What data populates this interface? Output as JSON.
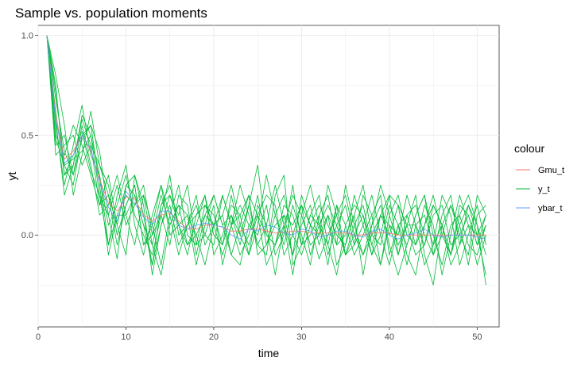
{
  "chart_data": {
    "type": "line",
    "title": "Sample vs. population moments",
    "xlabel": "time",
    "ylabel": "yt",
    "xlim": [
      0,
      52.5
    ],
    "ylim": [
      -0.46,
      1.05
    ],
    "xticks": [
      0,
      10,
      20,
      30,
      40,
      50
    ],
    "yticks": [
      0.0,
      0.5,
      1.0
    ],
    "xtick_labels": [
      "0",
      "10",
      "20",
      "30",
      "40",
      "50"
    ],
    "ytick_labels": [
      "0.0",
      "0.5",
      "1.0"
    ],
    "grid": true,
    "legend": {
      "title": "colour",
      "position": "right",
      "entries": [
        {
          "name": "Gmu_t",
          "color": "#F8766D"
        },
        {
          "name": "y_t",
          "color": "#00BA38"
        },
        {
          "name": "ybar_t",
          "color": "#619CFF"
        }
      ]
    },
    "x": [
      1,
      2,
      3,
      4,
      5,
      6,
      7,
      8,
      9,
      10,
      11,
      12,
      13,
      14,
      15,
      16,
      17,
      18,
      19,
      20,
      21,
      22,
      23,
      24,
      25,
      26,
      27,
      28,
      29,
      30,
      31,
      32,
      33,
      34,
      35,
      36,
      37,
      38,
      39,
      40,
      41,
      42,
      43,
      44,
      45,
      46,
      47,
      48,
      49,
      50,
      51
    ],
    "series": [
      {
        "name": "Gmu_t",
        "color": "#F8766D",
        "values": [
          1.0,
          0.6,
          0.38,
          0.42,
          0.5,
          0.42,
          0.28,
          0.16,
          0.12,
          0.19,
          0.18,
          0.1,
          0.07,
          0.1,
          0.11,
          0.07,
          0.03,
          0.03,
          0.05,
          0.05,
          0.04,
          0.02,
          0.02,
          0.03,
          0.03,
          0.02,
          0.01,
          0.01,
          0.02,
          0.02,
          0.01,
          0.01,
          0.01,
          0.01,
          0.01,
          0.0,
          0.0,
          0.01,
          0.01,
          0.01,
          0.0,
          0.0,
          0.0,
          0.0,
          0.0,
          0.0,
          0.0,
          0.0,
          0.0,
          0.0,
          0.0
        ]
      },
      {
        "name": "ybar_t",
        "color": "#619CFF",
        "values": [
          1.0,
          0.58,
          0.36,
          0.4,
          0.5,
          0.43,
          0.26,
          0.14,
          0.07,
          0.22,
          0.16,
          0.09,
          0.05,
          0.12,
          0.12,
          0.05,
          0.03,
          0.05,
          0.06,
          0.05,
          0.04,
          0.0,
          -0.02,
          0.03,
          0.02,
          0.05,
          0.04,
          0.01,
          0.0,
          0.03,
          0.02,
          -0.01,
          0.0,
          0.02,
          0.02,
          0.0,
          -0.01,
          0.02,
          0.03,
          0.0,
          -0.02,
          0.0,
          0.01,
          0.03,
          0.0,
          -0.01,
          0.0,
          0.0,
          0.0,
          -0.01,
          -0.02
        ]
      },
      {
        "name": "y_t",
        "color": "#00BA38",
        "values": [
          1.0,
          0.72,
          0.35,
          0.25,
          0.5,
          0.55,
          0.42,
          0.1,
          -0.12,
          0.25,
          0.2,
          0.05,
          -0.05,
          0.15,
          0.2,
          0.05,
          -0.1,
          0.1,
          0.15,
          0.05,
          0.1,
          -0.1,
          -0.15,
          0.05,
          0.1,
          0.2,
          0.15,
          -0.1,
          0.0,
          0.15,
          0.05,
          -0.12,
          0.0,
          0.1,
          0.2,
          0.0,
          -0.1,
          0.05,
          0.15,
          -0.05,
          -0.2,
          -0.05,
          0.1,
          0.2,
          0.0,
          -0.15,
          0.05,
          0.1,
          -0.05,
          -0.1,
          0.05
        ]
      },
      {
        "name": "y_t",
        "color": "#00BA38",
        "values": [
          1.0,
          0.5,
          0.4,
          0.55,
          0.45,
          0.3,
          0.15,
          0.3,
          0.05,
          -0.1,
          0.3,
          0.15,
          -0.2,
          0.05,
          0.2,
          0.1,
          0.25,
          -0.05,
          0.0,
          0.15,
          -0.15,
          0.05,
          0.25,
          0.1,
          -0.05,
          -0.1,
          0.2,
          0.3,
          -0.15,
          -0.05,
          0.1,
          0.2,
          -0.05,
          -0.2,
          0.05,
          0.15,
          0.1,
          -0.1,
          0.0,
          0.2,
          0.15,
          -0.1,
          -0.2,
          0.05,
          0.15,
          0.05,
          -0.15,
          -0.05,
          0.15,
          0.05,
          -0.1
        ]
      },
      {
        "name": "y_t",
        "color": "#00BA38",
        "values": [
          1.0,
          0.62,
          0.3,
          0.35,
          0.6,
          0.5,
          0.2,
          -0.05,
          0.2,
          0.35,
          0.05,
          -0.1,
          0.1,
          0.25,
          0.0,
          0.05,
          0.1,
          -0.15,
          0.05,
          0.2,
          0.05,
          0.1,
          -0.05,
          0.15,
          0.35,
          0.0,
          -0.05,
          0.05,
          -0.2,
          0.1,
          0.25,
          0.05,
          -0.05,
          0.15,
          -0.1,
          -0.05,
          0.2,
          0.1,
          -0.15,
          0.05,
          0.0,
          0.2,
          0.05,
          -0.15,
          -0.05,
          0.2,
          0.1,
          -0.15,
          0.0,
          0.15,
          -0.05
        ]
      },
      {
        "name": "y_t",
        "color": "#00BA38",
        "values": [
          1.0,
          0.8,
          0.55,
          0.2,
          0.4,
          0.62,
          0.35,
          0.25,
          0.0,
          0.15,
          0.25,
          -0.05,
          0.0,
          0.2,
          0.05,
          0.15,
          -0.05,
          0.05,
          0.2,
          -0.1,
          0.0,
          0.15,
          0.1,
          -0.1,
          0.05,
          0.3,
          0.1,
          -0.05,
          0.15,
          0.0,
          -0.15,
          0.1,
          0.2,
          -0.05,
          0.0,
          0.1,
          -0.2,
          0.05,
          0.25,
          0.1,
          -0.05,
          0.05,
          0.2,
          -0.1,
          -0.25,
          0.05,
          0.15,
          0.0,
          -0.1,
          0.2,
          0.1
        ]
      },
      {
        "name": "y_t",
        "color": "#00BA38",
        "values": [
          1.0,
          0.45,
          0.5,
          0.3,
          0.55,
          0.35,
          0.1,
          0.15,
          0.3,
          0.1,
          -0.05,
          0.2,
          0.05,
          -0.15,
          0.1,
          0.25,
          0.0,
          -0.05,
          0.15,
          0.1,
          -0.05,
          0.2,
          0.0,
          -0.1,
          0.15,
          0.05,
          -0.2,
          0.05,
          0.2,
          0.1,
          -0.05,
          0.0,
          0.25,
          0.1,
          -0.1,
          0.05,
          0.15,
          -0.05,
          -0.15,
          0.1,
          0.2,
          0.0,
          -0.05,
          0.15,
          0.05,
          -0.2,
          0.0,
          0.2,
          0.05,
          -0.15,
          0.0
        ]
      },
      {
        "name": "y_t",
        "color": "#00BA38",
        "values": [
          1.0,
          0.55,
          0.25,
          0.45,
          0.65,
          0.4,
          0.3,
          0.05,
          0.15,
          0.3,
          0.1,
          0.0,
          -0.1,
          0.1,
          0.3,
          0.0,
          0.05,
          0.2,
          -0.05,
          0.05,
          0.2,
          0.05,
          -0.1,
          0.0,
          0.2,
          -0.05,
          0.1,
          0.2,
          0.0,
          -0.1,
          0.05,
          0.15,
          0.05,
          -0.05,
          0.25,
          0.05,
          -0.1,
          0.0,
          0.1,
          0.05,
          -0.1,
          0.1,
          0.15,
          0.0,
          -0.1,
          0.1,
          0.2,
          -0.05,
          0.05,
          0.0,
          -0.2
        ]
      },
      {
        "name": "y_t",
        "color": "#00BA38",
        "values": [
          1.0,
          0.68,
          0.42,
          0.3,
          0.48,
          0.55,
          0.25,
          -0.1,
          0.1,
          0.2,
          0.15,
          0.2,
          -0.05,
          -0.2,
          0.05,
          0.15,
          0.1,
          0.0,
          -0.15,
          0.05,
          0.1,
          0.25,
          0.05,
          -0.05,
          0.1,
          -0.15,
          -0.05,
          0.15,
          0.1,
          -0.05,
          0.0,
          0.1,
          -0.1,
          0.05,
          0.15,
          -0.05,
          0.05,
          0.2,
          0.0,
          -0.15,
          0.05,
          0.1,
          -0.05,
          0.05,
          0.2,
          0.0,
          -0.1,
          0.1,
          0.2,
          0.05,
          -0.25
        ]
      },
      {
        "name": "y_t",
        "color": "#00BA38",
        "values": [
          1.0,
          0.4,
          0.45,
          0.5,
          0.35,
          0.45,
          0.35,
          0.2,
          0.05,
          0.25,
          0.3,
          0.1,
          -0.15,
          0.05,
          0.15,
          -0.05,
          0.05,
          0.15,
          0.0,
          -0.05,
          0.2,
          0.05,
          0.1,
          0.2,
          -0.1,
          -0.05,
          0.05,
          0.1,
          -0.1,
          0.2,
          0.05,
          0.0,
          0.1,
          -0.15,
          -0.05,
          0.1,
          0.25,
          0.0,
          -0.05,
          0.15,
          0.05,
          -0.15,
          0.05,
          0.1,
          -0.05,
          0.05,
          -0.1,
          0.15,
          0.1,
          -0.05,
          0.1
        ]
      },
      {
        "name": "y_t",
        "color": "#00BA38",
        "values": [
          1.0,
          0.75,
          0.3,
          0.4,
          0.52,
          0.32,
          0.2,
          0.1,
          0.25,
          0.05,
          0.15,
          0.25,
          0.0,
          0.1,
          -0.05,
          0.2,
          0.15,
          -0.1,
          0.1,
          0.05,
          -0.1,
          0.05,
          0.15,
          0.05,
          0.0,
          0.15,
          -0.1,
          0.0,
          0.25,
          -0.05,
          0.1,
          0.05,
          -0.15,
          0.15,
          0.05,
          -0.1,
          0.0,
          0.1,
          0.2,
          -0.1,
          0.05,
          -0.05,
          0.1,
          0.2,
          -0.1,
          0.0,
          0.15,
          0.05,
          -0.15,
          0.1,
          0.15
        ]
      },
      {
        "name": "y_t",
        "color": "#00BA38",
        "values": [
          1.0,
          0.58,
          0.2,
          0.35,
          0.58,
          0.45,
          0.15,
          0.2,
          -0.05,
          0.15,
          0.25,
          -0.05,
          0.05,
          0.25,
          0.1,
          -0.1,
          0.05,
          0.1,
          0.2,
          0.0,
          -0.05,
          0.1,
          0.0,
          0.15,
          -0.05,
          0.05,
          0.25,
          0.05,
          -0.1,
          0.05,
          0.15,
          -0.05,
          0.1,
          0.0,
          -0.05,
          0.2,
          0.05,
          -0.1,
          0.1,
          0.0,
          0.15,
          0.05,
          -0.1,
          -0.05,
          0.1,
          0.15,
          -0.05,
          0.0,
          0.1,
          -0.05,
          0.05
        ]
      },
      {
        "name": "y_t",
        "color": "#00BA38",
        "values": [
          1.0,
          0.48,
          0.35,
          0.38,
          0.42,
          0.5,
          0.3,
          -0.05,
          0.1,
          0.1,
          0.2,
          0.05,
          -0.15,
          0.15,
          0.25,
          0.05,
          -0.05,
          0.0,
          0.1,
          0.2,
          0.05,
          -0.1,
          0.05,
          0.2,
          0.1,
          0.0,
          -0.05,
          0.1,
          0.05,
          0.15,
          -0.1,
          0.05,
          0.15,
          0.05,
          -0.1,
          0.0,
          0.1,
          -0.05,
          0.1,
          0.2,
          -0.1,
          0.05,
          0.05,
          -0.05,
          0.15,
          0.05,
          -0.1,
          0.05,
          0.15,
          0.0,
          0.1
        ]
      }
    ]
  }
}
